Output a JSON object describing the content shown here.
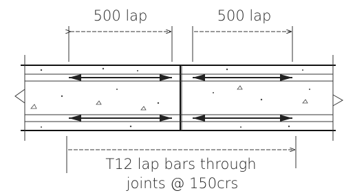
{
  "labels": {
    "left_dimension": "500 lap",
    "right_dimension": "500 lap",
    "note_line1": "T12 lap bars through",
    "note_line2": "joints @ 150crs"
  }
}
